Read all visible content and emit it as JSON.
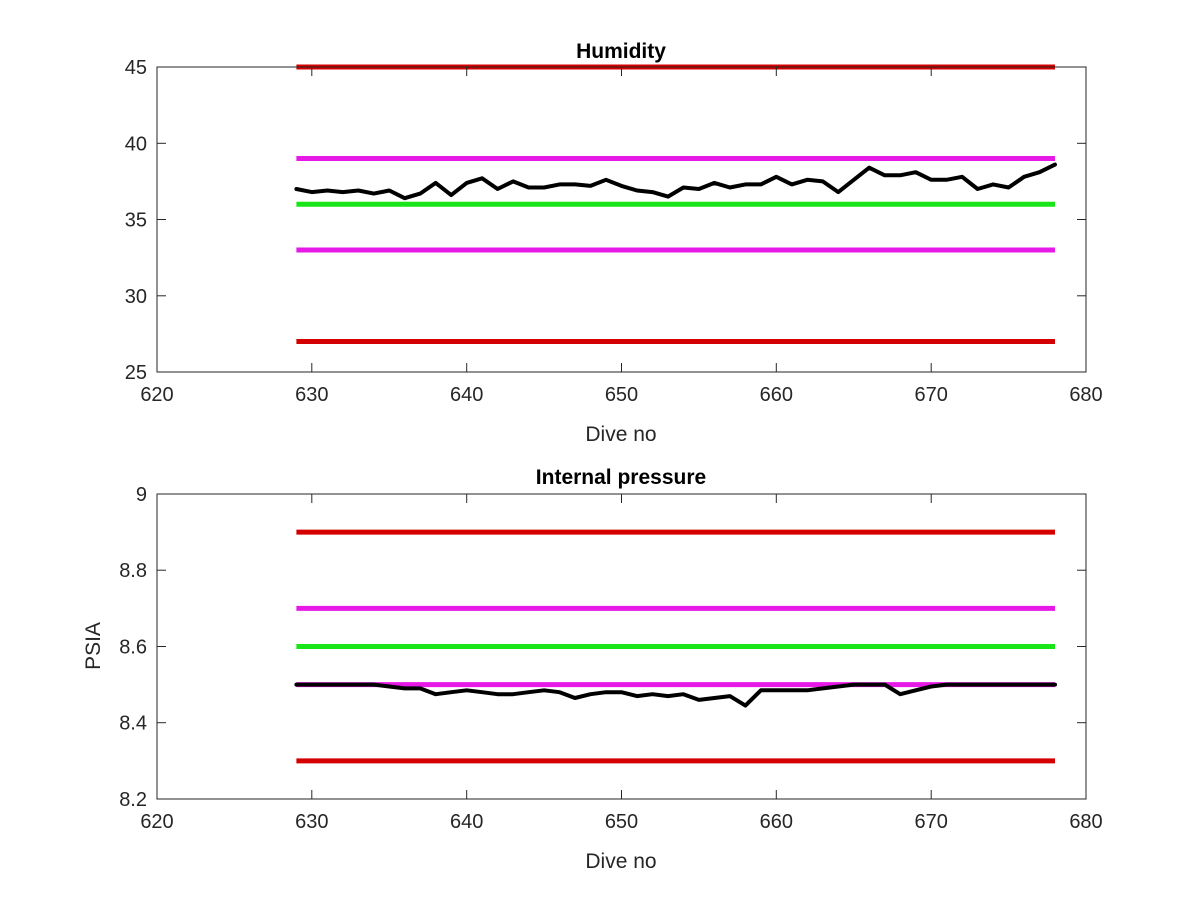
{
  "colors": {
    "red_limit": "#d40000",
    "magenta_limit": "#e619e6",
    "green_target": "#19e619",
    "data_line": "#000000",
    "axes": "#262626"
  },
  "chart_data": [
    {
      "type": "line",
      "title": "Humidity",
      "xlabel": "Dive no",
      "ylabel": "",
      "xlim": [
        620,
        680
      ],
      "ylim": [
        25,
        45
      ],
      "xticks": [
        620,
        630,
        640,
        650,
        660,
        670,
        680
      ],
      "yticks": [
        25,
        30,
        35,
        40,
        45
      ],
      "xtick_labels": [
        "620",
        "630",
        "640",
        "650",
        "660",
        "670",
        "680"
      ],
      "ytick_labels": [
        "25",
        "30",
        "35",
        "40",
        "45"
      ],
      "grid": false,
      "hlines": [
        {
          "y": 45,
          "x": [
            629,
            678
          ],
          "color": "red"
        },
        {
          "y": 39,
          "x": [
            629,
            678
          ],
          "color": "magenta"
        },
        {
          "y": 36,
          "x": [
            629,
            678
          ],
          "color": "green"
        },
        {
          "y": 33,
          "x": [
            629,
            678
          ],
          "color": "magenta"
        },
        {
          "y": 27,
          "x": [
            629,
            678
          ],
          "color": "red"
        }
      ],
      "series": [
        {
          "color": "black",
          "x": [
            629,
            630,
            631,
            632,
            633,
            634,
            635,
            636,
            637,
            638,
            639,
            640,
            641,
            642,
            643,
            644,
            645,
            646,
            647,
            648,
            649,
            650,
            651,
            652,
            653,
            654,
            655,
            656,
            657,
            658,
            659,
            660,
            661,
            662,
            663,
            664,
            665,
            666,
            667,
            668,
            669,
            670,
            671,
            672,
            673,
            674,
            675,
            676,
            677,
            678
          ],
          "values": [
            37.0,
            36.8,
            36.9,
            36.8,
            36.9,
            36.7,
            36.9,
            36.4,
            36.7,
            37.4,
            36.6,
            37.4,
            37.7,
            37.0,
            37.5,
            37.1,
            37.1,
            37.3,
            37.3,
            37.2,
            37.6,
            37.2,
            36.9,
            36.8,
            36.5,
            37.1,
            37.0,
            37.4,
            37.1,
            37.3,
            37.3,
            37.8,
            37.3,
            37.6,
            37.5,
            36.8,
            37.6,
            38.4,
            37.9,
            37.9,
            38.1,
            37.6,
            37.6,
            37.8,
            37.0,
            37.3,
            37.1,
            37.8,
            38.1,
            38.6
          ]
        }
      ]
    },
    {
      "type": "line",
      "title": "Internal pressure",
      "xlabel": "Dive no",
      "ylabel": "PSIA",
      "xlim": [
        620,
        680
      ],
      "ylim": [
        8.2,
        9.0
      ],
      "xticks": [
        620,
        630,
        640,
        650,
        660,
        670,
        680
      ],
      "yticks": [
        8.2,
        8.4,
        8.6,
        8.8,
        9.0
      ],
      "xtick_labels": [
        "620",
        "630",
        "640",
        "650",
        "660",
        "670",
        "680"
      ],
      "ytick_labels": [
        "8.2",
        "8.4",
        "8.6",
        "8.8",
        "9"
      ],
      "grid": false,
      "hlines": [
        {
          "y": 8.9,
          "x": [
            629,
            678
          ],
          "color": "red"
        },
        {
          "y": 8.7,
          "x": [
            629,
            678
          ],
          "color": "magenta"
        },
        {
          "y": 8.6,
          "x": [
            629,
            678
          ],
          "color": "green"
        },
        {
          "y": 8.5,
          "x": [
            629,
            678
          ],
          "color": "magenta"
        },
        {
          "y": 8.3,
          "x": [
            629,
            678
          ],
          "color": "red"
        }
      ],
      "series": [
        {
          "color": "black",
          "x": [
            629,
            630,
            631,
            632,
            633,
            634,
            635,
            636,
            637,
            638,
            639,
            640,
            641,
            642,
            643,
            644,
            645,
            646,
            647,
            648,
            649,
            650,
            651,
            652,
            653,
            654,
            655,
            656,
            657,
            658,
            659,
            660,
            661,
            662,
            663,
            664,
            665,
            666,
            667,
            668,
            669,
            670,
            671,
            672,
            673,
            674,
            675,
            676,
            677,
            678
          ],
          "values": [
            8.5,
            8.5,
            8.5,
            8.5,
            8.5,
            8.5,
            8.495,
            8.49,
            8.49,
            8.475,
            8.48,
            8.485,
            8.48,
            8.475,
            8.475,
            8.48,
            8.485,
            8.48,
            8.465,
            8.475,
            8.48,
            8.48,
            8.47,
            8.475,
            8.47,
            8.475,
            8.46,
            8.465,
            8.47,
            8.445,
            8.485,
            8.485,
            8.485,
            8.485,
            8.49,
            8.495,
            8.5,
            8.5,
            8.5,
            8.475,
            8.485,
            8.495,
            8.5,
            8.5,
            8.5,
            8.5,
            8.5,
            8.5,
            8.5,
            8.5
          ]
        }
      ]
    }
  ]
}
